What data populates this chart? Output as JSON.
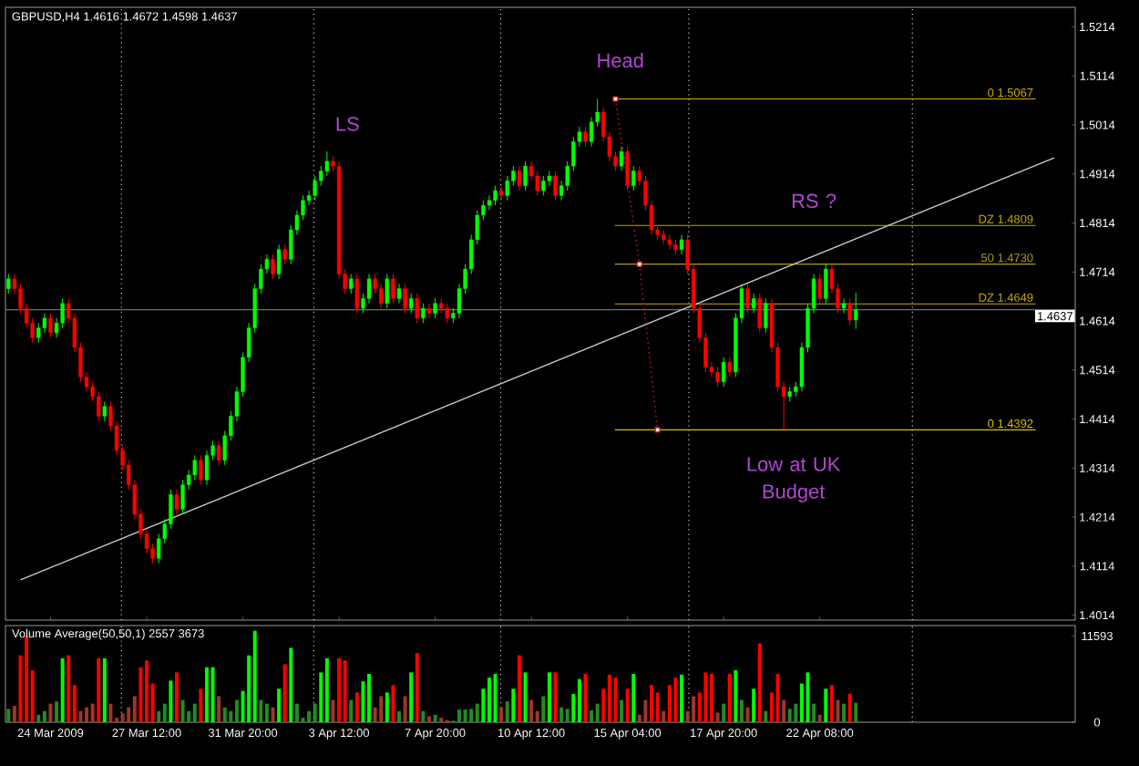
{
  "chart_data": [
    {
      "type": "candlestick",
      "title": "GBPUSD,H4 1.4616 1.4672 1.4598 1.4637",
      "categories": [
        null,
        null,
        null,
        null,
        null,
        null,
        null,
        "24 Mar 2009",
        null,
        null,
        null,
        null,
        null,
        null,
        null,
        null,
        null,
        null,
        null,
        null,
        null,
        null,
        null,
        "27 Mar 12:00",
        null,
        null,
        null,
        null,
        null,
        null,
        null,
        null,
        null,
        null,
        null,
        null,
        null,
        null,
        null,
        "31 Mar 20:00",
        null,
        null,
        null,
        null,
        null,
        null,
        null,
        null,
        null,
        null,
        null,
        null,
        null,
        null,
        null,
        "3 Apr 12:00",
        null,
        null,
        null,
        null,
        null,
        null,
        null,
        null,
        null,
        null,
        null,
        null,
        null,
        null,
        null,
        "7 Apr 20:00",
        null,
        null,
        null,
        null,
        null,
        null,
        null,
        null,
        null,
        null,
        null,
        null,
        null,
        null,
        null,
        "10 Apr 12:00",
        null,
        null,
        null,
        null,
        null,
        null,
        null,
        null,
        null,
        null,
        null,
        null,
        null,
        null,
        null,
        "15 Apr 04:00",
        null,
        null,
        null,
        null,
        null,
        null,
        null,
        null,
        null,
        null,
        null,
        null,
        null,
        null,
        null,
        "17 Apr 20:00",
        null,
        null,
        null,
        null,
        null,
        null,
        null,
        null,
        null,
        null,
        null,
        null,
        null,
        null,
        null,
        "22 Apr 08:00",
        null,
        null,
        null,
        null,
        null,
        null,
        null,
        null,
        null,
        null,
        null,
        null,
        null,
        null,
        null,
        null,
        null,
        null,
        null,
        null,
        null,
        null,
        null,
        null,
        null,
        null,
        null,
        null,
        null,
        null,
        null,
        null,
        null,
        null,
        null,
        null,
        null,
        null,
        null,
        null,
        null,
        null
      ],
      "ohlc": [
        [
          1.468,
          1.471,
          1.467,
          1.47
        ],
        [
          1.47,
          1.471,
          1.467,
          1.468
        ],
        [
          1.468,
          1.469,
          1.463,
          1.464
        ],
        [
          1.464,
          1.465,
          1.46,
          1.461
        ],
        [
          1.461,
          1.462,
          1.457,
          1.458
        ],
        [
          1.458,
          1.461,
          1.457,
          1.46
        ],
        [
          1.46,
          1.463,
          1.459,
          1.462
        ],
        [
          1.462,
          1.463,
          1.458,
          1.459
        ],
        [
          1.459,
          1.462,
          1.458,
          1.461
        ],
        [
          1.461,
          1.466,
          1.46,
          1.465
        ],
        [
          1.465,
          1.466,
          1.461,
          1.462
        ],
        [
          1.462,
          1.463,
          1.455,
          1.456
        ],
        [
          1.456,
          1.457,
          1.449,
          1.45
        ],
        [
          1.45,
          1.451,
          1.447,
          1.448
        ],
        [
          1.448,
          1.449,
          1.445,
          1.446
        ],
        [
          1.446,
          1.447,
          1.441,
          1.442
        ],
        [
          1.442,
          1.445,
          1.441,
          1.444
        ],
        [
          1.444,
          1.445,
          1.439,
          1.44
        ],
        [
          1.44,
          1.441,
          1.434,
          1.435
        ],
        [
          1.435,
          1.436,
          1.431,
          1.432
        ],
        [
          1.432,
          1.433,
          1.427,
          1.428
        ],
        [
          1.428,
          1.429,
          1.421,
          1.422
        ],
        [
          1.422,
          1.423,
          1.417,
          1.418
        ],
        [
          1.418,
          1.419,
          1.414,
          1.415
        ],
        [
          1.415,
          1.416,
          1.412,
          1.413
        ],
        [
          1.413,
          1.418,
          1.412,
          1.417
        ],
        [
          1.417,
          1.421,
          1.416,
          1.42
        ],
        [
          1.42,
          1.427,
          1.419,
          1.426
        ],
        [
          1.426,
          1.427,
          1.422,
          1.423
        ],
        [
          1.423,
          1.429,
          1.422,
          1.428
        ],
        [
          1.428,
          1.431,
          1.427,
          1.43
        ],
        [
          1.43,
          1.434,
          1.429,
          1.433
        ],
        [
          1.433,
          1.434,
          1.428,
          1.429
        ],
        [
          1.429,
          1.435,
          1.428,
          1.434
        ],
        [
          1.434,
          1.437,
          1.433,
          1.436
        ],
        [
          1.436,
          1.437,
          1.432,
          1.433
        ],
        [
          1.433,
          1.439,
          1.432,
          1.438
        ],
        [
          1.438,
          1.443,
          1.437,
          1.442
        ],
        [
          1.442,
          1.448,
          1.441,
          1.447
        ],
        [
          1.447,
          1.455,
          1.446,
          1.454
        ],
        [
          1.454,
          1.461,
          1.453,
          1.46
        ],
        [
          1.46,
          1.469,
          1.459,
          1.468
        ],
        [
          1.468,
          1.473,
          1.467,
          1.472
        ],
        [
          1.472,
          1.475,
          1.471,
          1.474
        ],
        [
          1.474,
          1.475,
          1.47,
          1.471
        ],
        [
          1.471,
          1.477,
          1.47,
          1.476
        ],
        [
          1.476,
          1.477,
          1.473,
          1.474
        ],
        [
          1.474,
          1.481,
          1.473,
          1.48
        ],
        [
          1.48,
          1.484,
          1.479,
          1.483
        ],
        [
          1.483,
          1.487,
          1.482,
          1.486
        ],
        [
          1.486,
          1.488,
          1.485,
          1.487
        ],
        [
          1.487,
          1.491,
          1.486,
          1.49
        ],
        [
          1.49,
          1.493,
          1.489,
          1.492
        ],
        [
          1.492,
          1.496,
          1.491,
          1.494
        ],
        [
          1.494,
          1.495,
          1.492,
          1.493
        ],
        [
          1.493,
          1.494,
          1.47,
          1.471
        ],
        [
          1.471,
          1.472,
          1.467,
          1.468
        ],
        [
          1.468,
          1.471,
          1.467,
          1.47
        ],
        [
          1.47,
          1.471,
          1.463,
          1.464
        ],
        [
          1.464,
          1.467,
          1.463,
          1.466
        ],
        [
          1.466,
          1.471,
          1.465,
          1.47
        ],
        [
          1.47,
          1.471,
          1.467,
          1.468
        ],
        [
          1.468,
          1.469,
          1.464,
          1.465
        ],
        [
          1.465,
          1.471,
          1.464,
          1.47
        ],
        [
          1.47,
          1.471,
          1.465,
          1.466
        ],
        [
          1.466,
          1.469,
          1.465,
          1.468
        ],
        [
          1.468,
          1.469,
          1.463,
          1.464
        ],
        [
          1.464,
          1.467,
          1.463,
          1.466
        ],
        [
          1.466,
          1.467,
          1.461,
          1.462
        ],
        [
          1.462,
          1.465,
          1.461,
          1.464
        ],
        [
          1.464,
          1.465,
          1.462,
          1.463
        ],
        [
          1.463,
          1.466,
          1.462,
          1.465
        ],
        [
          1.465,
          1.466,
          1.463,
          1.464
        ],
        [
          1.464,
          1.465,
          1.461,
          1.462
        ],
        [
          1.462,
          1.464,
          1.461,
          1.463
        ],
        [
          1.463,
          1.469,
          1.462,
          1.468
        ],
        [
          1.468,
          1.473,
          1.467,
          1.472
        ],
        [
          1.472,
          1.479,
          1.471,
          1.478
        ],
        [
          1.478,
          1.484,
          1.477,
          1.483
        ],
        [
          1.483,
          1.486,
          1.482,
          1.485
        ],
        [
          1.485,
          1.487,
          1.484,
          1.486
        ],
        [
          1.486,
          1.489,
          1.485,
          1.488
        ],
        [
          1.488,
          1.489,
          1.486,
          1.487
        ],
        [
          1.487,
          1.491,
          1.486,
          1.49
        ],
        [
          1.49,
          1.493,
          1.489,
          1.492
        ],
        [
          1.492,
          1.493,
          1.488,
          1.489
        ],
        [
          1.489,
          1.494,
          1.488,
          1.493
        ],
        [
          1.493,
          1.494,
          1.49,
          1.491
        ],
        [
          1.491,
          1.492,
          1.487,
          1.488
        ],
        [
          1.488,
          1.491,
          1.487,
          1.49
        ],
        [
          1.49,
          1.492,
          1.489,
          1.491
        ],
        [
          1.491,
          1.492,
          1.486,
          1.487
        ],
        [
          1.487,
          1.49,
          1.486,
          1.489
        ],
        [
          1.489,
          1.494,
          1.488,
          1.493
        ],
        [
          1.493,
          1.499,
          1.492,
          1.498
        ],
        [
          1.498,
          1.501,
          1.497,
          1.5
        ],
        [
          1.5,
          1.501,
          1.497,
          1.498
        ],
        [
          1.498,
          1.503,
          1.497,
          1.502
        ],
        [
          1.502,
          1.5067,
          1.501,
          1.504
        ],
        [
          1.504,
          1.505,
          1.498,
          1.499
        ],
        [
          1.499,
          1.5,
          1.494,
          1.495
        ],
        [
          1.495,
          1.496,
          1.492,
          1.493
        ],
        [
          1.493,
          1.497,
          1.492,
          1.496
        ],
        [
          1.496,
          1.497,
          1.488,
          1.489
        ],
        [
          1.489,
          1.493,
          1.488,
          1.492
        ],
        [
          1.492,
          1.493,
          1.489,
          1.49
        ],
        [
          1.49,
          1.491,
          1.484,
          1.485
        ],
        [
          1.485,
          1.486,
          1.479,
          1.48
        ],
        [
          1.48,
          1.481,
          1.478,
          1.479
        ],
        [
          1.479,
          1.48,
          1.477,
          1.478
        ],
        [
          1.478,
          1.479,
          1.476,
          1.477
        ],
        [
          1.477,
          1.478,
          1.475,
          1.476
        ],
        [
          1.476,
          1.479,
          1.475,
          1.478
        ],
        [
          1.478,
          1.479,
          1.471,
          1.472
        ],
        [
          1.472,
          1.473,
          1.463,
          1.464
        ],
        [
          1.464,
          1.465,
          1.457,
          1.458
        ],
        [
          1.458,
          1.459,
          1.451,
          1.452
        ],
        [
          1.452,
          1.453,
          1.45,
          1.451
        ],
        [
          1.451,
          1.452,
          1.448,
          1.449
        ],
        [
          1.449,
          1.454,
          1.448,
          1.453
        ],
        [
          1.453,
          1.454,
          1.45,
          1.451
        ],
        [
          1.451,
          1.463,
          1.45,
          1.462
        ],
        [
          1.462,
          1.469,
          1.461,
          1.468
        ],
        [
          1.468,
          1.469,
          1.463,
          1.464
        ],
        [
          1.464,
          1.467,
          1.463,
          1.466
        ],
        [
          1.466,
          1.467,
          1.459,
          1.46
        ],
        [
          1.46,
          1.466,
          1.459,
          1.465
        ],
        [
          1.465,
          1.466,
          1.455,
          1.456
        ],
        [
          1.456,
          1.457,
          1.447,
          1.448
        ],
        [
          1.448,
          1.449,
          1.4392,
          1.446
        ],
        [
          1.446,
          1.448,
          1.445,
          1.447
        ],
        [
          1.447,
          1.449,
          1.446,
          1.448
        ],
        [
          1.448,
          1.457,
          1.447,
          1.456
        ],
        [
          1.456,
          1.465,
          1.455,
          1.464
        ],
        [
          1.464,
          1.471,
          1.463,
          1.47
        ],
        [
          1.47,
          1.471,
          1.465,
          1.466
        ],
        [
          1.466,
          1.473,
          1.465,
          1.472
        ],
        [
          1.472,
          1.473,
          1.467,
          1.468
        ],
        [
          1.468,
          1.469,
          1.463,
          1.464
        ],
        [
          1.464,
          1.466,
          1.463,
          1.465
        ],
        [
          1.465,
          1.466,
          1.4606,
          1.4616
        ],
        [
          1.4616,
          1.4672,
          1.4598,
          1.4637
        ],
        null,
        null,
        null,
        null,
        null,
        null,
        null,
        null,
        null,
        null,
        null,
        null,
        null,
        null,
        null,
        null,
        null,
        null,
        null,
        null,
        null,
        null,
        null,
        null,
        null,
        null,
        null,
        null,
        null,
        null,
        null,
        null,
        null,
        null,
        null,
        null
      ],
      "ylim": [
        1.4004,
        1.5254
      ],
      "yticks": [
        1.4014,
        1.4114,
        1.4214,
        1.4314,
        1.4414,
        1.4514,
        1.4614,
        1.4714,
        1.4814,
        1.4914,
        1.5014,
        1.5114,
        1.5214
      ],
      "series": [
        {
          "type": "line",
          "color": "#c8c8c8",
          "values": [
            null,
            null,
            1.4086,
            null,
            null,
            null,
            null,
            null,
            null,
            null,
            null,
            null,
            null,
            null,
            null,
            null,
            null,
            null,
            null,
            null,
            null,
            null,
            null,
            null,
            null,
            null,
            null,
            null,
            null,
            null,
            null,
            null,
            null,
            null,
            null,
            null,
            null,
            null,
            null,
            null,
            null,
            null,
            null,
            null,
            null,
            null,
            null,
            null,
            null,
            null,
            null,
            null,
            null,
            null,
            null,
            null,
            null,
            null,
            null,
            null,
            null,
            null,
            null,
            null,
            null,
            null,
            null,
            null,
            null,
            null,
            null,
            null,
            null,
            null,
            null,
            null,
            null,
            null,
            null,
            null,
            null,
            null,
            null,
            null,
            null,
            null,
            null,
            null,
            null,
            null,
            null,
            null,
            null,
            null,
            null,
            null,
            null,
            null,
            null,
            null,
            null,
            null,
            null,
            null,
            null,
            null,
            null,
            null,
            null,
            null,
            null,
            null,
            null,
            null,
            null,
            null,
            null,
            null,
            null,
            null,
            null,
            null,
            null,
            null,
            null,
            null,
            null,
            null,
            null,
            null,
            null,
            null,
            null,
            null,
            null,
            null,
            null,
            null,
            null,
            null,
            null,
            null,
            null,
            null,
            null,
            null,
            null,
            null,
            null,
            null,
            null,
            null,
            null,
            null,
            null,
            null,
            null,
            null,
            null,
            null,
            null,
            null,
            null,
            null,
            null,
            null,
            null,
            null,
            null,
            null,
            null,
            null,
            null,
            null,
            1.4947,
            null,
            null,
            null
          ]
        },
        {
          "type": "line",
          "color": "#e02020",
          "line_style": "dotted",
          "marker": "square",
          "values": [
            null,
            null,
            null,
            null,
            null,
            null,
            null,
            null,
            null,
            null,
            null,
            null,
            null,
            null,
            null,
            null,
            null,
            null,
            null,
            null,
            null,
            null,
            null,
            null,
            null,
            null,
            null,
            null,
            null,
            null,
            null,
            null,
            null,
            null,
            null,
            null,
            null,
            null,
            null,
            null,
            null,
            null,
            null,
            null,
            null,
            null,
            null,
            null,
            null,
            null,
            null,
            null,
            null,
            null,
            null,
            null,
            null,
            null,
            null,
            null,
            null,
            null,
            null,
            null,
            null,
            null,
            null,
            null,
            null,
            null,
            null,
            null,
            null,
            null,
            null,
            null,
            null,
            null,
            null,
            null,
            null,
            null,
            null,
            null,
            null,
            null,
            null,
            null,
            null,
            null,
            null,
            null,
            null,
            null,
            null,
            null,
            null,
            null,
            null,
            null,
            null,
            1.5067,
            null,
            null,
            null,
            1.473,
            null,
            null,
            1.4392,
            null,
            null,
            null,
            null,
            null,
            null,
            null,
            null,
            null,
            null,
            null,
            null,
            null,
            null,
            null,
            null,
            null,
            null,
            null,
            null,
            null,
            null,
            null,
            null,
            null,
            null,
            null,
            null,
            null,
            null,
            null,
            null,
            null,
            null,
            null,
            null,
            null,
            null,
            null,
            null,
            null,
            null,
            null,
            null,
            null,
            null,
            null,
            null,
            null,
            null,
            null,
            null,
            null,
            null,
            null,
            null,
            null,
            null,
            null,
            null,
            null,
            null,
            null,
            null,
            null,
            null,
            null,
            null,
            null
          ]
        }
      ],
      "ref_lines": [
        {
          "axis": "y",
          "value": 1.4637,
          "label": "1.4637",
          "color": "#5a7a6a"
        },
        {
          "axis": "y",
          "value": 1.5067,
          "label": "0 1.5067",
          "color": "#d0b000"
        },
        {
          "axis": "y",
          "value": 1.4809,
          "label": "DZ 1.4809",
          "color": "#c8a800"
        },
        {
          "axis": "y",
          "value": 1.473,
          "label": "50 1.4730",
          "color": "#b09a10"
        },
        {
          "axis": "y",
          "value": 1.4649,
          "label": "DZ 1.4649",
          "color": "#c8a800"
        },
        {
          "axis": "y",
          "value": 1.4392,
          "label": "0 1.4392",
          "color": "#e0c000"
        }
      ],
      "annotations": [
        "Head",
        "LS",
        "RS ?",
        "Low at UK Budget"
      ]
    },
    {
      "type": "bar",
      "title": "Volume Average(50,50,1) 2557 3673",
      "categories": [
        null,
        null,
        null,
        null,
        null,
        null,
        null,
        null,
        null,
        null,
        null,
        null,
        null,
        null,
        null,
        null,
        null,
        null,
        null,
        null,
        null,
        null,
        null,
        null,
        null,
        null,
        null,
        null,
        null,
        null,
        null,
        null,
        null,
        null,
        null,
        null,
        null,
        null,
        null,
        null,
        null,
        null,
        null,
        null,
        null,
        null,
        null,
        null,
        null,
        null,
        null,
        null,
        null,
        null,
        null,
        null,
        null,
        null,
        null,
        null,
        null,
        null,
        null,
        null,
        null,
        null,
        null,
        null,
        null,
        null,
        null,
        null,
        null,
        null,
        null,
        null,
        null,
        null,
        null,
        null,
        null,
        null,
        null,
        null,
        null,
        null,
        null,
        null,
        null,
        null,
        null,
        null,
        null,
        null,
        null,
        null,
        null,
        null,
        null,
        null,
        null,
        null,
        null,
        null,
        null,
        null,
        null,
        null,
        null,
        null,
        null,
        null,
        null,
        null,
        null,
        null,
        null,
        null,
        null,
        null,
        null,
        null,
        null,
        null,
        null,
        null,
        null,
        null,
        null,
        null,
        null,
        null,
        null,
        null,
        null,
        null,
        null,
        null,
        null,
        null,
        null,
        null,
        null,
        null,
        null,
        null,
        null,
        null,
        null,
        null,
        null,
        null,
        null,
        null,
        null,
        null,
        null,
        null,
        null,
        null,
        null,
        null,
        null,
        null,
        null,
        null,
        null,
        null,
        null,
        null,
        null,
        null,
        null,
        null,
        null,
        null,
        null,
        null
      ],
      "tick_labels": "y",
      "values": [
        1800,
        2200,
        9000,
        11600,
        7000,
        1000,
        1500,
        2500,
        2800,
        8600,
        9000,
        5000,
        1500,
        2000,
        2500,
        8600,
        8600,
        2500,
        600,
        1200,
        2000,
        3500,
        7400,
        8300,
        5200,
        1500,
        2500,
        5600,
        6700,
        3000,
        1500,
        2500,
        4500,
        7400,
        7400,
        3500,
        2000,
        1500,
        3000,
        4200,
        9000,
        12300,
        3000,
        2500,
        2000,
        4500,
        7800,
        10000,
        2500,
        600,
        1500,
        2500,
        6700,
        8600,
        3000,
        8600,
        8300,
        3000,
        4000,
        5500,
        6500,
        2000,
        3500,
        4000,
        5000,
        1500,
        3500,
        6700,
        9300,
        1500,
        800,
        1000,
        600,
        300,
        200,
        1700,
        1700,
        1800,
        2500,
        4500,
        6000,
        6500,
        2000,
        2800,
        4500,
        9000,
        6700,
        3000,
        1500,
        3500,
        6700,
        6700,
        2000,
        1800,
        3800,
        5800,
        6500,
        1600,
        2500,
        4500,
        6400,
        6000,
        3000,
        4500,
        6500,
        1000,
        3000,
        5000,
        4000,
        1500,
        5000,
        6000,
        6400,
        1500,
        3500,
        4000,
        6700,
        6500,
        1300,
        2500,
        6500,
        7000,
        3000,
        2000,
        4500,
        10600,
        1500,
        4000,
        6500,
        3000,
        1800,
        2500,
        5200,
        6700,
        2500,
        1000,
        4500,
        5000,
        3000,
        2500,
        3800,
        2600,
        null,
        null,
        null,
        null,
        null,
        null,
        null,
        null,
        null,
        null,
        null,
        null,
        null,
        null,
        null,
        null,
        null,
        null,
        null,
        null,
        null,
        null,
        null,
        null,
        null,
        null,
        null,
        null,
        null,
        null,
        null,
        null,
        null,
        null,
        null,
        null
      ],
      "colors": [
        "#228b22",
        "#a0352a",
        "#ff0000",
        "#ff0000",
        "#ff0000",
        "#228b22",
        "#228b22",
        "#a0352a",
        "#228b22",
        "#00ff00",
        "#ff0000",
        "#ff0000",
        "#a0352a",
        "#a0352a",
        "#a0352a",
        "#ff0000",
        "#00ff00",
        "#a0352a",
        "#a0352a",
        "#a0352a",
        "#a0352a",
        "#a0352a",
        "#ff0000",
        "#ff0000",
        "#ff0000",
        "#228b22",
        "#228b22",
        "#00ff00",
        "#ff0000",
        "#228b22",
        "#228b22",
        "#228b22",
        "#ff0000",
        "#00ff00",
        "#00ff00",
        "#a0352a",
        "#228b22",
        "#228b22",
        "#228b22",
        "#00ff00",
        "#00ff00",
        "#00ff00",
        "#228b22",
        "#228b22",
        "#a0352a",
        "#00ff00",
        "#ff0000",
        "#00ff00",
        "#228b22",
        "#228b22",
        "#228b22",
        "#228b22",
        "#00ff00",
        "#00ff00",
        "#a0352a",
        "#ff0000",
        "#ff0000",
        "#228b22",
        "#ff0000",
        "#00ff00",
        "#00ff00",
        "#a0352a",
        "#a0352a",
        "#00ff00",
        "#ff0000",
        "#228b22",
        "#a0352a",
        "#00ff00",
        "#ff0000",
        "#228b22",
        "#a0352a",
        "#228b22",
        "#a0352a",
        "#a0352a",
        "#228b22",
        "#228b22",
        "#228b22",
        "#228b22",
        "#228b22",
        "#00ff00",
        "#00ff00",
        "#00ff00",
        "#a0352a",
        "#228b22",
        "#00ff00",
        "#ff0000",
        "#00ff00",
        "#a0352a",
        "#a0352a",
        "#228b22",
        "#00ff00",
        "#ff0000",
        "#228b22",
        "#228b22",
        "#00ff00",
        "#00ff00",
        "#ff0000",
        "#228b22",
        "#228b22",
        "#ff0000",
        "#ff0000",
        "#ff0000",
        "#228b22",
        "#ff0000",
        "#00ff00",
        "#a0352a",
        "#a0352a",
        "#ff0000",
        "#ff0000",
        "#a0352a",
        "#ff0000",
        "#ff0000",
        "#00ff00",
        "#a0352a",
        "#a0352a",
        "#ff0000",
        "#ff0000",
        "#ff0000",
        "#a0352a",
        "#228b22",
        "#ff0000",
        "#00ff00",
        "#228b22",
        "#a0352a",
        "#00ff00",
        "#ff0000",
        "#228b22",
        "#ff0000",
        "#ff0000",
        "#a0352a",
        "#228b22",
        "#228b22",
        "#00ff00",
        "#00ff00",
        "#228b22",
        "#a0352a",
        "#00ff00",
        "#ff0000",
        "#a0352a",
        "#228b22",
        "#ff0000",
        "#228b22",
        null,
        null,
        null,
        null,
        null,
        null,
        null,
        null,
        null,
        null,
        null,
        null,
        null,
        null,
        null,
        null,
        null,
        null,
        null,
        null,
        null,
        null,
        null,
        null,
        null,
        null,
        null,
        null,
        null,
        null,
        null,
        null,
        null,
        null,
        null,
        null
      ],
      "ylim": [
        0,
        13000
      ],
      "yticks": [
        0,
        11593
      ]
    }
  ]
}
